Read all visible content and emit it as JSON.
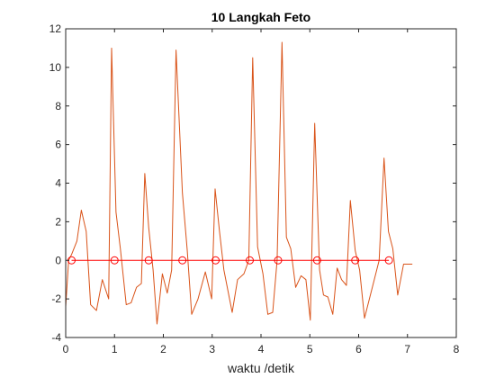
{
  "chart_data": {
    "type": "line",
    "title": "10 Langkah Feto",
    "xlabel": "waktu /detik",
    "ylabel": "",
    "xlim": [
      0,
      8
    ],
    "ylim": [
      -4,
      12
    ],
    "xticks": [
      0,
      1,
      2,
      3,
      4,
      5,
      6,
      7,
      8
    ],
    "yticks": [
      -4,
      -2,
      0,
      2,
      4,
      6,
      8,
      10,
      12
    ],
    "grid": false,
    "series": [
      {
        "color": "#D95319",
        "style": "line",
        "x": [
          0.0,
          0.06,
          0.12,
          0.23,
          0.32,
          0.42,
          0.51,
          0.63,
          0.75,
          0.88,
          0.94,
          1.03,
          1.12,
          1.24,
          1.34,
          1.45,
          1.55,
          1.62,
          1.7,
          1.79,
          1.87,
          1.98,
          2.08,
          2.17,
          2.26,
          2.39,
          2.49,
          2.58,
          2.71,
          2.86,
          2.99,
          3.06,
          3.15,
          3.24,
          3.41,
          3.52,
          3.65,
          3.75,
          3.83,
          3.93,
          4.04,
          4.14,
          4.24,
          4.33,
          4.43,
          4.52,
          4.61,
          4.71,
          4.82,
          4.92,
          5.01,
          5.1,
          5.2,
          5.28,
          5.37,
          5.47,
          5.56,
          5.65,
          5.75,
          5.83,
          5.93,
          6.02,
          6.12,
          6.22,
          6.32,
          6.42,
          6.52,
          6.61,
          6.7,
          6.8,
          6.92,
          7.01,
          7.1
        ],
        "y": [
          -2.4,
          0.0,
          0.3,
          1.0,
          2.6,
          1.5,
          -2.3,
          -2.6,
          -1.0,
          -2.0,
          11.0,
          2.5,
          0.6,
          -2.3,
          -2.2,
          -1.4,
          -1.2,
          4.5,
          1.7,
          -0.5,
          -3.3,
          -0.7,
          -1.7,
          -0.5,
          10.9,
          3.5,
          0.5,
          -2.8,
          -2.0,
          -0.6,
          -2.0,
          3.7,
          1.5,
          -0.5,
          -2.7,
          -1.0,
          -0.7,
          0.0,
          10.5,
          0.7,
          -0.7,
          -2.8,
          -2.7,
          0.0,
          11.3,
          1.2,
          0.6,
          -1.4,
          -0.8,
          -1.0,
          -3.1,
          7.1,
          -0.5,
          -1.8,
          -1.9,
          -2.8,
          -0.4,
          -1.0,
          -1.3,
          3.1,
          0.5,
          -0.5,
          -3.0,
          -2.0,
          -1.0,
          0.0,
          5.3,
          1.5,
          0.6,
          -1.8,
          -0.2,
          -0.2,
          -0.2
        ]
      },
      {
        "color": "#FF0000",
        "style": "line-circles",
        "x": [
          0.12,
          1.0,
          1.7,
          2.39,
          3.07,
          3.77,
          4.35,
          5.15,
          5.93,
          6.62
        ],
        "y": [
          0,
          0,
          0,
          0,
          0,
          0,
          0,
          0,
          0,
          0
        ]
      }
    ]
  }
}
